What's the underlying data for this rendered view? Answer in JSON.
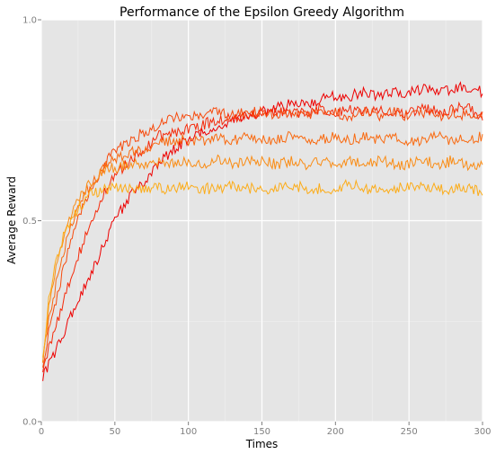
{
  "chart_data": {
    "type": "line",
    "title": "Performance of the Epsilon Greedy Algorithm",
    "xlabel": "Times",
    "ylabel": "Average Reward",
    "xlim": [
      0,
      300
    ],
    "ylim": [
      0,
      1
    ],
    "x_ticks": [
      0,
      50,
      100,
      150,
      200,
      250,
      300
    ],
    "x_tick_labels": [
      "0",
      "50",
      "100",
      "150",
      "200",
      "250",
      "300"
    ],
    "y_ticks": [
      0,
      0.5,
      1
    ],
    "y_tick_labels": [
      "0.0",
      "0.5",
      "1.0"
    ],
    "grid": true,
    "legend": "none",
    "background": "#e5e5e5",
    "x": [
      1,
      5,
      10,
      15,
      20,
      25,
      30,
      35,
      40,
      45,
      50,
      60,
      70,
      80,
      90,
      100,
      110,
      120,
      130,
      140,
      150,
      160,
      170,
      180,
      190,
      200,
      210,
      220,
      230,
      240,
      250,
      260,
      270,
      280,
      290,
      300
    ],
    "series": [
      {
        "color": "#ee0000",
        "values": [
          0.11,
          0.14,
          0.18,
          0.22,
          0.26,
          0.3,
          0.34,
          0.38,
          0.42,
          0.46,
          0.5,
          0.56,
          0.6,
          0.64,
          0.68,
          0.7,
          0.72,
          0.73,
          0.75,
          0.76,
          0.77,
          0.78,
          0.79,
          0.79,
          0.8,
          0.81,
          0.81,
          0.82,
          0.81,
          0.82,
          0.82,
          0.83,
          0.82,
          0.83,
          0.83,
          0.82
        ]
      },
      {
        "color": "#f52a0a",
        "values": [
          0.13,
          0.18,
          0.24,
          0.3,
          0.36,
          0.41,
          0.46,
          0.51,
          0.55,
          0.58,
          0.61,
          0.65,
          0.68,
          0.71,
          0.72,
          0.73,
          0.74,
          0.75,
          0.76,
          0.76,
          0.77,
          0.77,
          0.77,
          0.77,
          0.78,
          0.77,
          0.78,
          0.77,
          0.78,
          0.77,
          0.77,
          0.78,
          0.77,
          0.78,
          0.78,
          0.76
        ]
      },
      {
        "color": "#f74a0c",
        "values": [
          0.14,
          0.22,
          0.3,
          0.38,
          0.45,
          0.5,
          0.55,
          0.59,
          0.62,
          0.65,
          0.67,
          0.7,
          0.72,
          0.74,
          0.76,
          0.76,
          0.76,
          0.77,
          0.76,
          0.77,
          0.77,
          0.76,
          0.77,
          0.76,
          0.77,
          0.77,
          0.76,
          0.77,
          0.76,
          0.77,
          0.76,
          0.77,
          0.76,
          0.77,
          0.76,
          0.76
        ]
      },
      {
        "color": "#f96a10",
        "values": [
          0.15,
          0.25,
          0.34,
          0.42,
          0.48,
          0.53,
          0.57,
          0.6,
          0.62,
          0.64,
          0.65,
          0.67,
          0.68,
          0.69,
          0.7,
          0.7,
          0.7,
          0.71,
          0.7,
          0.71,
          0.7,
          0.7,
          0.71,
          0.7,
          0.7,
          0.71,
          0.7,
          0.71,
          0.7,
          0.71,
          0.7,
          0.7,
          0.71,
          0.7,
          0.7,
          0.71
        ]
      },
      {
        "color": "#fa8c14",
        "values": [
          0.15,
          0.28,
          0.38,
          0.45,
          0.51,
          0.55,
          0.58,
          0.6,
          0.62,
          0.63,
          0.63,
          0.64,
          0.64,
          0.65,
          0.64,
          0.65,
          0.64,
          0.65,
          0.64,
          0.65,
          0.65,
          0.64,
          0.65,
          0.64,
          0.65,
          0.64,
          0.65,
          0.64,
          0.65,
          0.64,
          0.64,
          0.65,
          0.64,
          0.65,
          0.64,
          0.64
        ]
      },
      {
        "color": "#fcac18",
        "values": [
          0.16,
          0.3,
          0.4,
          0.46,
          0.5,
          0.53,
          0.55,
          0.57,
          0.57,
          0.58,
          0.58,
          0.58,
          0.58,
          0.58,
          0.58,
          0.59,
          0.58,
          0.58,
          0.59,
          0.58,
          0.58,
          0.58,
          0.59,
          0.58,
          0.58,
          0.58,
          0.59,
          0.58,
          0.58,
          0.58,
          0.59,
          0.58,
          0.58,
          0.58,
          0.58,
          0.57
        ]
      }
    ]
  }
}
